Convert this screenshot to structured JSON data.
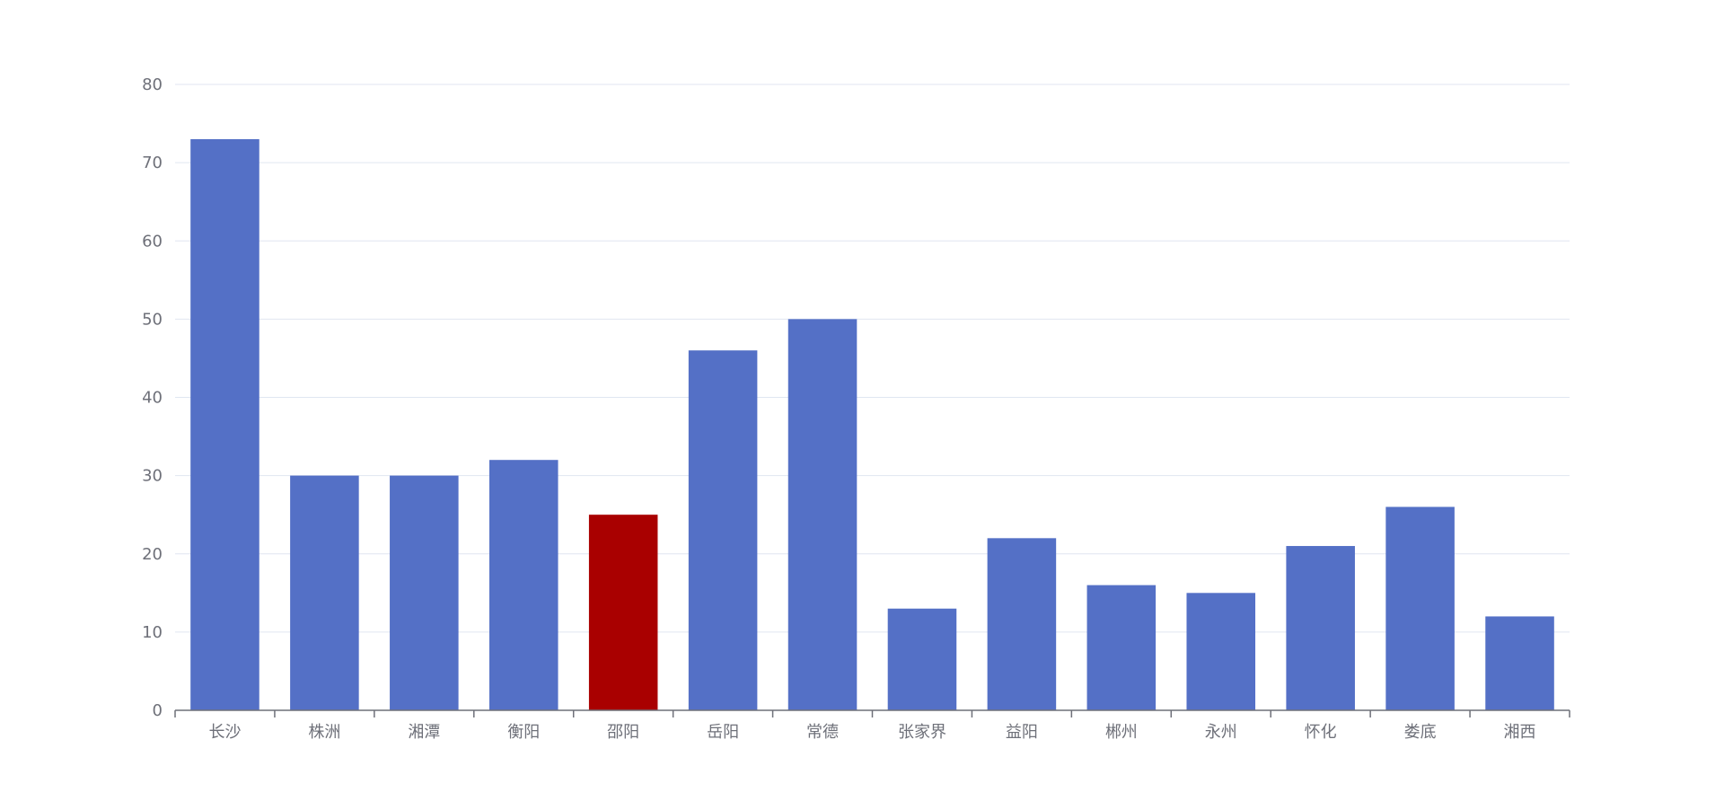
{
  "chart_data": {
    "type": "bar",
    "categories": [
      "长沙",
      "株洲",
      "湘潭",
      "衡阳",
      "邵阳",
      "岳阳",
      "常德",
      "张家界",
      "益阳",
      "郴州",
      "永州",
      "怀化",
      "娄底",
      "湘西"
    ],
    "values": [
      73,
      30,
      30,
      32,
      25,
      46,
      50,
      13,
      22,
      16,
      15,
      21,
      26,
      12
    ],
    "highlight_category": "邵阳",
    "ylim": [
      0,
      80
    ],
    "yticks": [
      0,
      10,
      20,
      30,
      40,
      50,
      60,
      70,
      80
    ],
    "grid": true,
    "legend": "none",
    "colors": {
      "bar": "#5470c6",
      "highlight": "#a90000",
      "grid": "#e0e6f1",
      "axis": "#6e7079",
      "label": "#6e7079"
    }
  }
}
